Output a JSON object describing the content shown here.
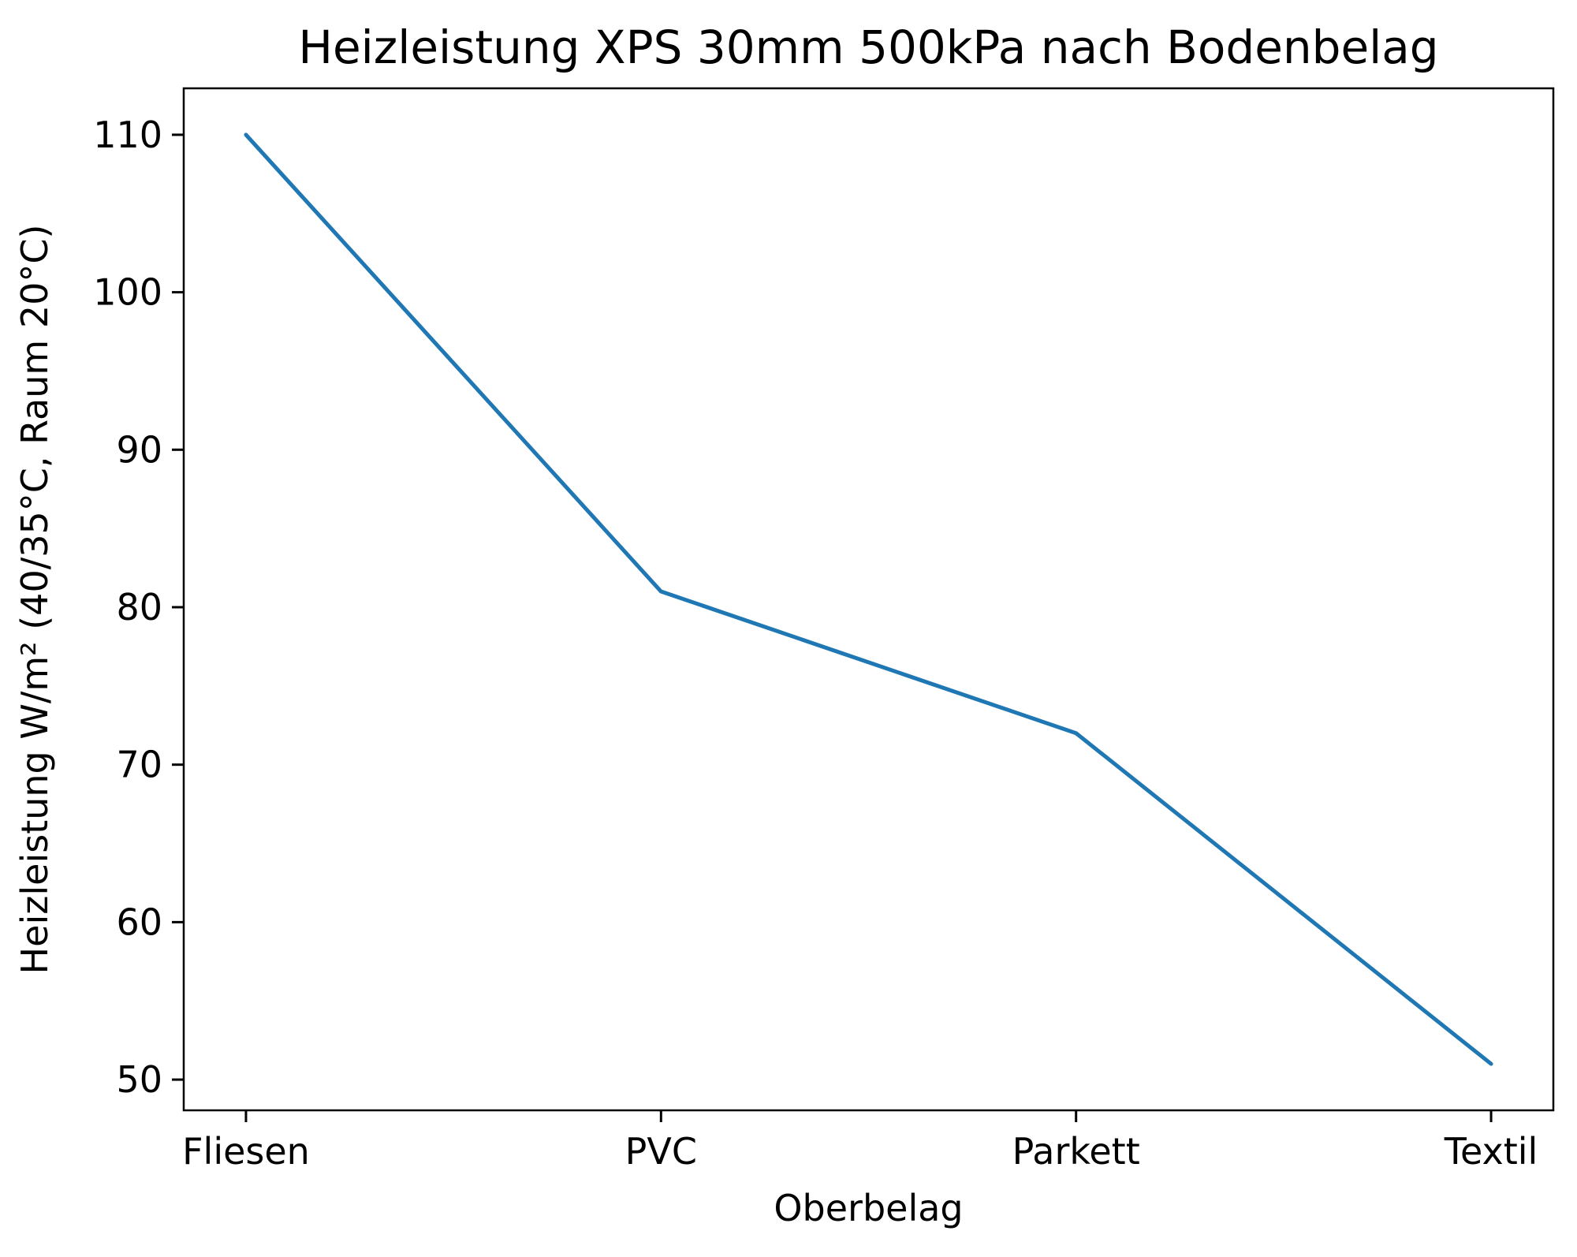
{
  "chart_data": {
    "type": "line",
    "title": "Heizleistung XPS 30mm 500kPa nach Bodenbelag",
    "xlabel": "Oberbelag",
    "ylabel": "Heizleistung W/m² (40/35°C, Raum 20°C)",
    "categories": [
      "Fliesen",
      "PVC",
      "Parkett",
      "Textil"
    ],
    "values": [
      110,
      81,
      72,
      51
    ],
    "yticks": [
      50,
      60,
      70,
      80,
      90,
      100,
      110
    ],
    "ylim": [
      48.05,
      112.95
    ],
    "xlim": [
      -0.15,
      3.15
    ],
    "grid": false,
    "legend": false,
    "markers": false,
    "line_color": "#1f77b4",
    "axis_color": "#000000",
    "text_color": "#000000",
    "background_color": "#ffffff"
  }
}
